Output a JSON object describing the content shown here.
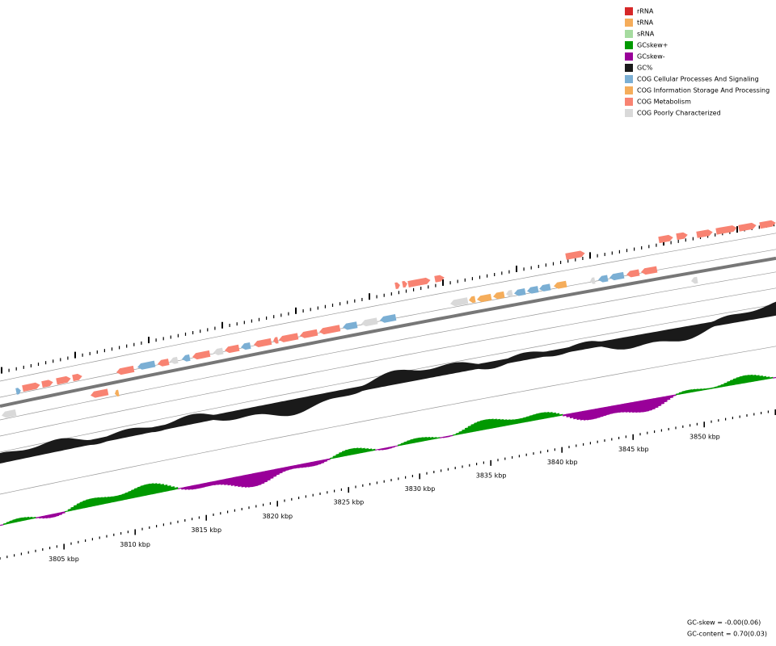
{
  "legend": [
    {
      "label": "rRNA",
      "color": "#d62728"
    },
    {
      "label": "tRNA",
      "color": "#f5ad5b"
    },
    {
      "label": "sRNA",
      "color": "#a6dba0"
    },
    {
      "label": "GCskew+",
      "color": "#009900"
    },
    {
      "label": "GCskew-",
      "color": "#990099"
    },
    {
      "label": "GC%",
      "color": "#1a1a1a"
    },
    {
      "label": "COG Cellular Processes And Signaling",
      "color": "#7bafd4"
    },
    {
      "label": "COG Information Storage And Processing",
      "color": "#f5ad5b"
    },
    {
      "label": "COG Metabolism",
      "color": "#f88372"
    },
    {
      "label": "COG Poorly Characterized",
      "color": "#d9d9d9"
    }
  ],
  "scale_labels": [
    "3805 kbp",
    "3810 kbp",
    "3815 kbp",
    "3820 kbp",
    "3825 kbp",
    "3830 kbp",
    "3835 kbp",
    "3840 kbp",
    "3845 kbp",
    "3850 kbp"
  ],
  "stats": [
    "GC-skew = -0.00(0.06)",
    "GC-content = 0.70(0.03)"
  ]
}
